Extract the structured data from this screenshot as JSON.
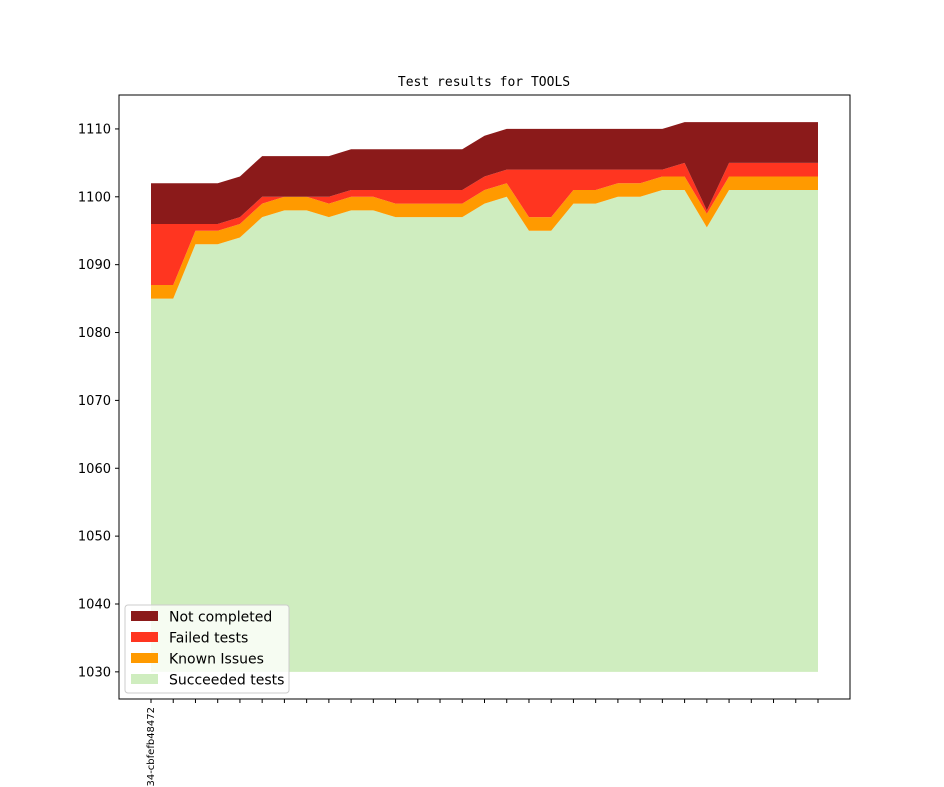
{
  "chart_data": {
    "type": "area",
    "stacked": true,
    "title": "Test results for TOOLS",
    "xlabel": "",
    "ylabel": "",
    "ylim": [
      1026,
      1115
    ],
    "yticks": [
      1030,
      1040,
      1050,
      1060,
      1070,
      1080,
      1090,
      1100,
      1110
    ],
    "baseline": 1030,
    "grid": false,
    "legend_position": "lower-left",
    "x_tick_labels": [
      "34-cbfefb48472"
    ],
    "x": [
      0,
      1,
      2,
      3,
      4,
      5,
      6,
      7,
      8,
      9,
      10,
      11,
      12,
      13,
      14,
      15,
      16,
      17,
      18,
      19,
      20,
      21,
      22,
      23,
      24,
      25,
      26,
      27,
      28,
      29,
      30
    ],
    "series": [
      {
        "name": "Succeeded tests",
        "color": "#cfedbf",
        "cumulative_top": [
          1085,
          1085,
          1093,
          1093,
          1094,
          1097,
          1098,
          1098,
          1097,
          1098,
          1098,
          1097,
          1097,
          1097,
          1097,
          1099,
          1100,
          1095,
          1095,
          1099,
          1099,
          1100,
          1100,
          1101,
          1101,
          1095.5,
          1101,
          1101,
          1101,
          1101,
          1101
        ]
      },
      {
        "name": "Known Issues",
        "color": "#ff9a00",
        "cumulative_top": [
          1087,
          1087,
          1095,
          1095,
          1096,
          1099,
          1100,
          1100,
          1099,
          1100,
          1100,
          1099,
          1099,
          1099,
          1099,
          1101,
          1102,
          1097,
          1097,
          1101,
          1101,
          1102,
          1102,
          1103,
          1103,
          1097.5,
          1103,
          1103,
          1103,
          1103,
          1103
        ]
      },
      {
        "name": "Failed tests",
        "color": "#ff3520",
        "cumulative_top": [
          1096,
          1096,
          1096,
          1096,
          1097,
          1100,
          1100,
          1100,
          1100,
          1101,
          1101,
          1101,
          1101,
          1101,
          1101,
          1103,
          1104,
          1104,
          1104,
          1104,
          1104,
          1104,
          1104,
          1104,
          1105,
          1098,
          1105,
          1105,
          1105,
          1105,
          1105
        ]
      },
      {
        "name": "Not completed",
        "color": "#8b1a1a",
        "cumulative_top": [
          1102,
          1102,
          1102,
          1102,
          1103,
          1106,
          1106,
          1106,
          1106,
          1107,
          1107,
          1107,
          1107,
          1107,
          1107,
          1109,
          1110,
          1110,
          1110,
          1110,
          1110,
          1110,
          1110,
          1110,
          1111,
          1111,
          1111,
          1111,
          1111,
          1111,
          1111
        ]
      }
    ],
    "legend_order": [
      "Not completed",
      "Failed tests",
      "Known Issues",
      "Succeeded tests"
    ]
  }
}
